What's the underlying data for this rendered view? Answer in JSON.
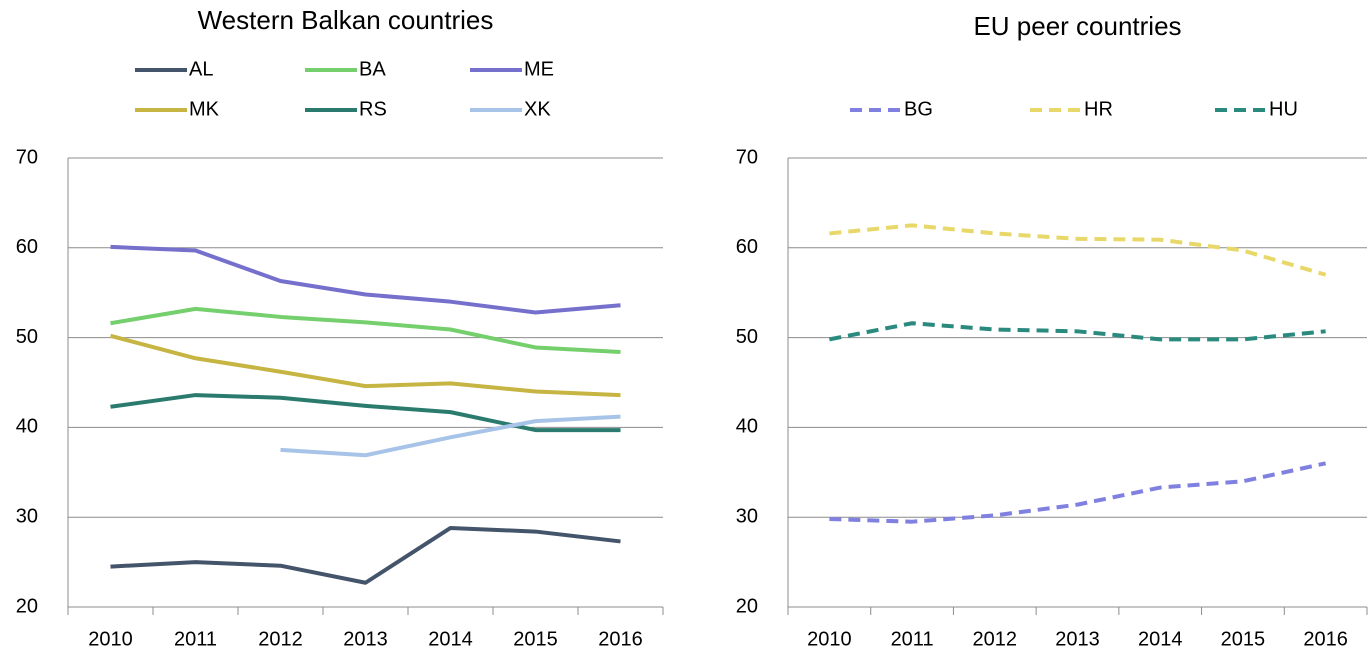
{
  "chart_data": [
    {
      "type": "line",
      "title": "Western Balkan countries",
      "categories": [
        "2010",
        "2011",
        "2012",
        "2013",
        "2014",
        "2015",
        "2016"
      ],
      "ylim": [
        20,
        70
      ],
      "yticks": [
        20,
        30,
        40,
        50,
        60,
        70
      ],
      "grid": true,
      "legend": "top",
      "line_style": "solid",
      "series": [
        {
          "name": "AL",
          "color": "#44546a",
          "values": [
            24.5,
            25.0,
            24.6,
            22.7,
            28.8,
            28.4,
            27.3
          ]
        },
        {
          "name": "BA",
          "color": "#74cf6c",
          "values": [
            51.6,
            53.2,
            52.3,
            51.7,
            50.9,
            48.9,
            48.4
          ]
        },
        {
          "name": "ME",
          "color": "#7570cc",
          "values": [
            60.1,
            59.7,
            56.3,
            54.8,
            54.0,
            52.8,
            53.6
          ]
        },
        {
          "name": "MK",
          "color": "#c6b443",
          "values": [
            50.2,
            47.7,
            46.2,
            44.6,
            44.9,
            44.0,
            43.6
          ]
        },
        {
          "name": "RS",
          "color": "#2a7b6e",
          "values": [
            42.3,
            43.6,
            43.3,
            42.4,
            41.7,
            39.7,
            39.7
          ]
        },
        {
          "name": "XK",
          "color": "#a7c4e8",
          "values": [
            null,
            null,
            37.5,
            36.9,
            38.9,
            40.7,
            41.2
          ]
        }
      ]
    },
    {
      "type": "line",
      "title": "EU peer countries",
      "categories": [
        "2010",
        "2011",
        "2012",
        "2013",
        "2014",
        "2015",
        "2016"
      ],
      "ylim": [
        20,
        70
      ],
      "yticks": [
        20,
        30,
        40,
        50,
        60,
        70
      ],
      "grid": true,
      "legend": "top",
      "line_style": "dashed",
      "series": [
        {
          "name": "BG",
          "color": "#8080e0",
          "values": [
            29.8,
            29.5,
            30.2,
            31.4,
            33.3,
            34.0,
            36.0
          ]
        },
        {
          "name": "HR",
          "color": "#e8d86a",
          "values": [
            61.6,
            62.5,
            61.6,
            61.0,
            60.9,
            59.7,
            57.0
          ]
        },
        {
          "name": "HU",
          "color": "#2a8a7e",
          "values": [
            49.8,
            51.6,
            50.9,
            50.7,
            49.8,
            49.8,
            50.7
          ]
        }
      ]
    }
  ]
}
